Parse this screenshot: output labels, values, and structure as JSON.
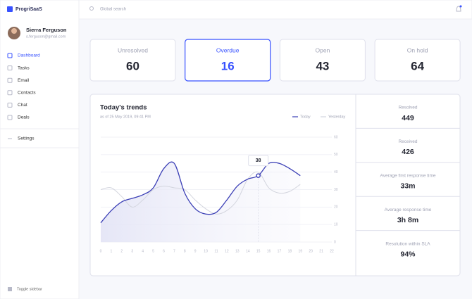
{
  "app": {
    "name": "ProgriSaaS"
  },
  "search": {
    "placeholder": "Global search"
  },
  "user": {
    "name": "Sierra Ferguson",
    "email": "s.ferguson@gmail.com"
  },
  "nav": [
    "Dashboard",
    "Tasks",
    "Email",
    "Contacts",
    "Chat",
    "Deals"
  ],
  "settings": "Settings",
  "toggle": "Toggle sidebar",
  "cards": [
    {
      "label": "Unresolved",
      "value": 60
    },
    {
      "label": "Overdue",
      "value": 16
    },
    {
      "label": "Open",
      "value": 43
    },
    {
      "label": "On hold",
      "value": 64
    }
  ],
  "chart_data": {
    "type": "line",
    "title": "Today's trends",
    "subtitle": "as of 25 May 2019, 09:41 PM",
    "x": [
      0,
      1,
      2,
      3,
      4,
      5,
      6,
      7,
      8,
      9,
      10,
      11,
      12,
      13,
      14,
      15,
      16,
      17,
      18,
      19,
      20,
      21,
      22
    ],
    "series": [
      {
        "name": "Today",
        "color": "#3b3fb6",
        "values": [
          11,
          18,
          23,
          25,
          27,
          31,
          42,
          45,
          28,
          19,
          16,
          17,
          24,
          32,
          36,
          38,
          45,
          45,
          42,
          38,
          null,
          null,
          null
        ]
      },
      {
        "name": "Yesterday",
        "color": "#d3d5de",
        "values": [
          30,
          31,
          26,
          20,
          24,
          30,
          32,
          31,
          30,
          24,
          19,
          16,
          18,
          24,
          36,
          40,
          31,
          28,
          29,
          33,
          null,
          null,
          null
        ]
      }
    ],
    "xlim": [
      0,
      22
    ],
    "xticks": [
      0,
      1,
      2,
      3,
      4,
      5,
      6,
      7,
      8,
      9,
      10,
      11,
      12,
      13,
      14,
      15,
      16,
      17,
      18,
      19,
      20,
      21,
      22
    ],
    "ylim": [
      0,
      60
    ],
    "yticks": [
      0,
      10,
      20,
      30,
      40,
      50,
      60
    ],
    "grid": true,
    "legend": "top-right",
    "hover_x": 15
  },
  "stats": [
    {
      "label": "Resolved",
      "value": "449"
    },
    {
      "label": "Received",
      "value": "426"
    },
    {
      "label": "Average first response time",
      "value": "33m"
    },
    {
      "label": "Average response time",
      "value": "3h 8m"
    },
    {
      "label": "Resolution within SLA",
      "value": "94%"
    }
  ]
}
